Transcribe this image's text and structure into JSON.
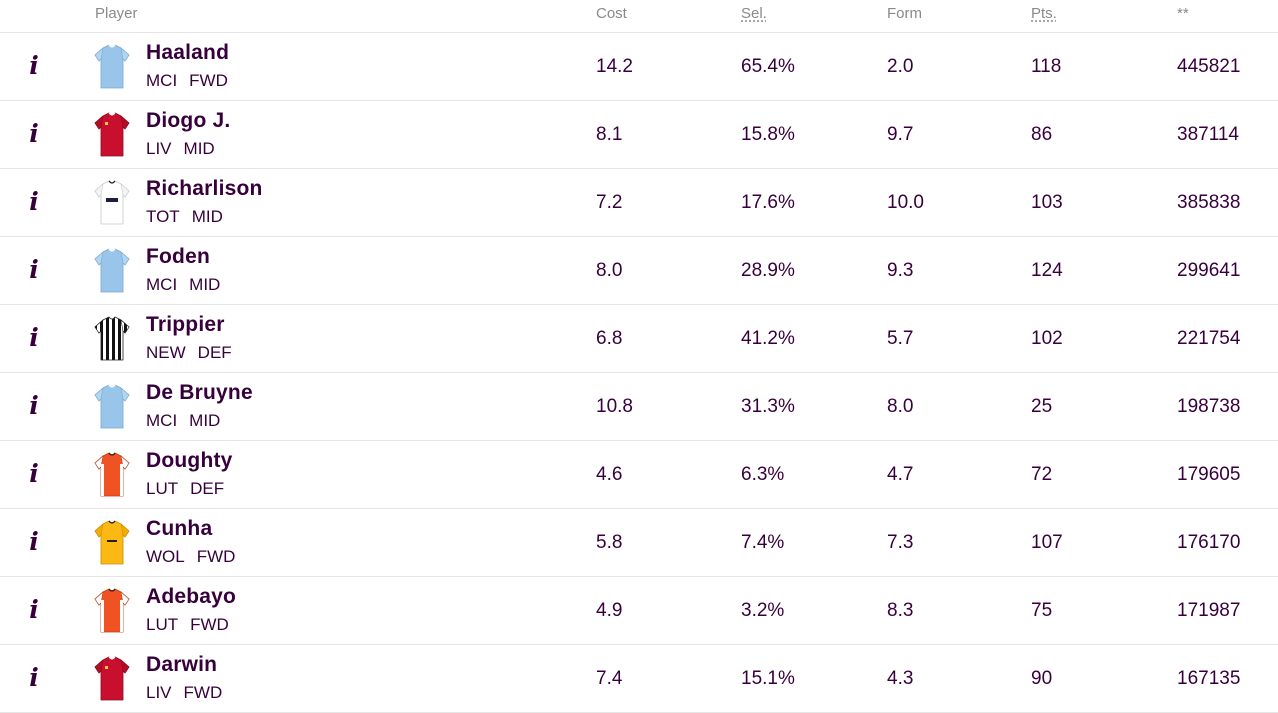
{
  "header": {
    "player": "Player",
    "cost": "Cost",
    "sel": "Sel.",
    "form": "Form",
    "pts": "Pts.",
    "stat": "**"
  },
  "info_icon": "i",
  "colors": {
    "text": "#37003c",
    "header_text": "#8a8a8a",
    "divider": "#e6e6e6"
  },
  "players": [
    {
      "name": "Haaland",
      "team": "MCI",
      "pos": "FWD",
      "cost": "14.2",
      "sel": "65.4%",
      "form": "2.0",
      "pts": "118",
      "stat": "445821",
      "shirt": "mci"
    },
    {
      "name": "Diogo J.",
      "team": "LIV",
      "pos": "MID",
      "cost": "8.1",
      "sel": "15.8%",
      "form": "9.7",
      "pts": "86",
      "stat": "387114",
      "shirt": "liv"
    },
    {
      "name": "Richarlison",
      "team": "TOT",
      "pos": "MID",
      "cost": "7.2",
      "sel": "17.6%",
      "form": "10.0",
      "pts": "103",
      "stat": "385838",
      "shirt": "tot"
    },
    {
      "name": "Foden",
      "team": "MCI",
      "pos": "MID",
      "cost": "8.0",
      "sel": "28.9%",
      "form": "9.3",
      "pts": "124",
      "stat": "299641",
      "shirt": "mci"
    },
    {
      "name": "Trippier",
      "team": "NEW",
      "pos": "DEF",
      "cost": "6.8",
      "sel": "41.2%",
      "form": "5.7",
      "pts": "102",
      "stat": "221754",
      "shirt": "new"
    },
    {
      "name": "De Bruyne",
      "team": "MCI",
      "pos": "MID",
      "cost": "10.8",
      "sel": "31.3%",
      "form": "8.0",
      "pts": "25",
      "stat": "198738",
      "shirt": "mci"
    },
    {
      "name": "Doughty",
      "team": "LUT",
      "pos": "DEF",
      "cost": "4.6",
      "sel": "6.3%",
      "form": "4.7",
      "pts": "72",
      "stat": "179605",
      "shirt": "lut"
    },
    {
      "name": "Cunha",
      "team": "WOL",
      "pos": "FWD",
      "cost": "5.8",
      "sel": "7.4%",
      "form": "7.3",
      "pts": "107",
      "stat": "176170",
      "shirt": "wol"
    },
    {
      "name": "Adebayo",
      "team": "LUT",
      "pos": "FWD",
      "cost": "4.9",
      "sel": "3.2%",
      "form": "8.3",
      "pts": "75",
      "stat": "171987",
      "shirt": "lut"
    },
    {
      "name": "Darwin",
      "team": "LIV",
      "pos": "FWD",
      "cost": "7.4",
      "sel": "15.1%",
      "form": "4.3",
      "pts": "90",
      "stat": "167135",
      "shirt": "liv"
    }
  ]
}
